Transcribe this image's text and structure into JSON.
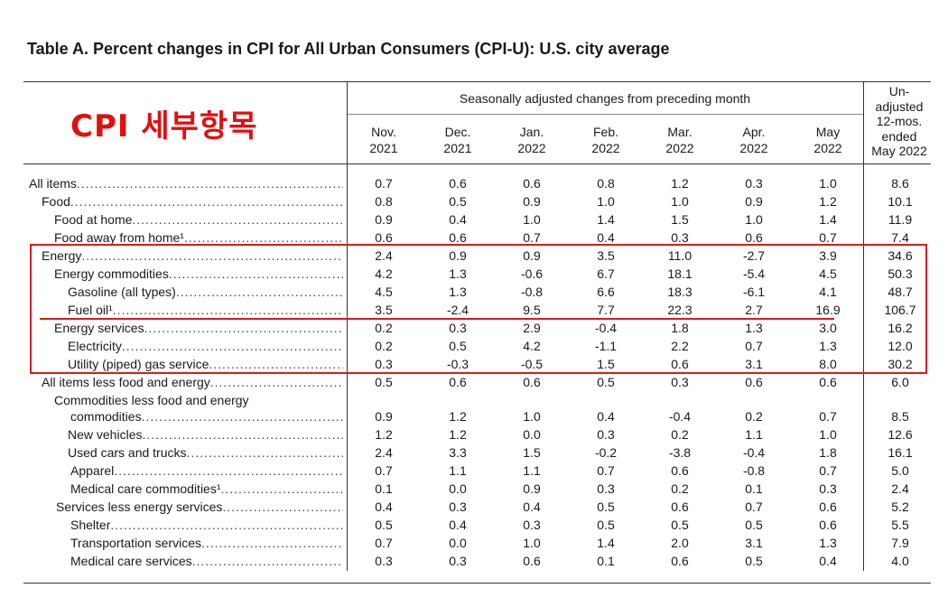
{
  "title": "Table A. Percent changes in CPI for All Urban Consumers (CPI-U): U.S. city average",
  "annotation_text": "CPI 세부항목",
  "seasonal_header": "Seasonally adjusted changes from preceding month",
  "unadjusted_header": [
    "Un-",
    "adjusted",
    "12-mos.",
    "ended",
    "May 2022"
  ],
  "columns": [
    {
      "line1": "Nov.",
      "line2": "2021"
    },
    {
      "line1": "Dec.",
      "line2": "2021"
    },
    {
      "line1": "Jan.",
      "line2": "2022"
    },
    {
      "line1": "Feb.",
      "line2": "2022"
    },
    {
      "line1": "Mar.",
      "line2": "2022"
    },
    {
      "line1": "Apr.",
      "line2": "2022"
    },
    {
      "line1": "May",
      "line2": "2022"
    }
  ],
  "commodities_label_line1": "Commodities less food and energy",
  "rows": [
    {
      "label": "All items",
      "values": [
        "0.7",
        "0.6",
        "0.6",
        "0.8",
        "1.2",
        "0.3",
        "1.0",
        "8.6"
      ]
    },
    {
      "label": "Food",
      "values": [
        "0.8",
        "0.5",
        "0.9",
        "1.0",
        "1.0",
        "0.9",
        "1.2",
        "10.1"
      ]
    },
    {
      "label": "Food at home",
      "values": [
        "0.9",
        "0.4",
        "1.0",
        "1.4",
        "1.5",
        "1.0",
        "1.4",
        "11.9"
      ]
    },
    {
      "label": "Food away from home¹",
      "values": [
        "0.6",
        "0.6",
        "0.7",
        "0.4",
        "0.3",
        "0.6",
        "0.7",
        "7.4"
      ]
    },
    {
      "label": "Energy",
      "values": [
        "2.4",
        "0.9",
        "0.9",
        "3.5",
        "11.0",
        "-2.7",
        "3.9",
        "34.6"
      ]
    },
    {
      "label": "Energy commodities",
      "values": [
        "4.2",
        "1.3",
        "-0.6",
        "6.7",
        "18.1",
        "-5.4",
        "4.5",
        "50.3"
      ]
    },
    {
      "label": "Gasoline (all types)",
      "values": [
        "4.5",
        "1.3",
        "-0.8",
        "6.6",
        "18.3",
        "-6.1",
        "4.1",
        "48.7"
      ]
    },
    {
      "label": "Fuel oil¹",
      "values": [
        "3.5",
        "-2.4",
        "9.5",
        "7.7",
        "22.3",
        "2.7",
        "16.9",
        "106.7"
      ]
    },
    {
      "label": "Energy services",
      "values": [
        "0.2",
        "0.3",
        "2.9",
        "-0.4",
        "1.8",
        "1.3",
        "3.0",
        "16.2"
      ]
    },
    {
      "label": "Electricity",
      "values": [
        "0.2",
        "0.5",
        "4.2",
        "-1.1",
        "2.2",
        "0.7",
        "1.3",
        "12.0"
      ]
    },
    {
      "label": "Utility (piped) gas service",
      "values": [
        "0.3",
        "-0.3",
        "-0.5",
        "1.5",
        "0.6",
        "3.1",
        "8.0",
        "30.2"
      ]
    },
    {
      "label": "All items less food and energy",
      "values": [
        "0.5",
        "0.6",
        "0.6",
        "0.5",
        "0.3",
        "0.6",
        "0.6",
        "6.0"
      ]
    },
    {
      "label": "commodities",
      "values": [
        "0.9",
        "1.2",
        "1.0",
        "0.4",
        "-0.4",
        "0.2",
        "0.7",
        "8.5"
      ]
    },
    {
      "label": "New vehicles",
      "values": [
        "1.2",
        "1.2",
        "0.0",
        "0.3",
        "0.2",
        "1.1",
        "1.0",
        "12.6"
      ]
    },
    {
      "label": "Used cars and trucks",
      "values": [
        "2.4",
        "3.3",
        "1.5",
        "-0.2",
        "-3.8",
        "-0.4",
        "1.8",
        "16.1"
      ]
    },
    {
      "label": "Apparel",
      "values": [
        "0.7",
        "1.1",
        "1.1",
        "0.7",
        "0.6",
        "-0.8",
        "0.7",
        "5.0"
      ]
    },
    {
      "label": "Medical care commodities¹",
      "values": [
        "0.1",
        "0.0",
        "0.9",
        "0.3",
        "0.2",
        "0.1",
        "0.3",
        "2.4"
      ]
    },
    {
      "label": "Services less energy services",
      "values": [
        "0.4",
        "0.3",
        "0.4",
        "0.5",
        "0.6",
        "0.7",
        "0.6",
        "5.2"
      ]
    },
    {
      "label": "Shelter",
      "values": [
        "0.5",
        "0.4",
        "0.3",
        "0.5",
        "0.5",
        "0.5",
        "0.6",
        "5.5"
      ]
    },
    {
      "label": "Transportation services",
      "values": [
        "0.7",
        "0.0",
        "1.0",
        "1.4",
        "2.0",
        "3.1",
        "1.3",
        "7.9"
      ]
    },
    {
      "label": "Medical care services",
      "values": [
        "0.3",
        "0.3",
        "0.6",
        "0.1",
        "0.6",
        "0.5",
        "0.4",
        "4.0"
      ]
    }
  ]
}
